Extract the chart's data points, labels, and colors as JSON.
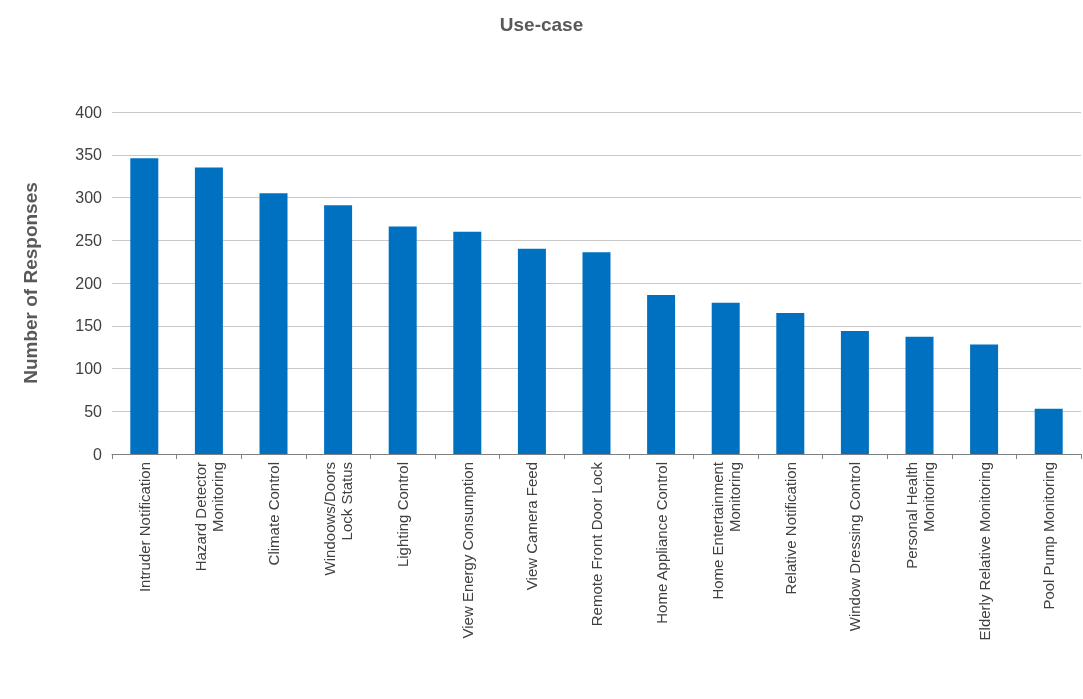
{
  "chart_data": {
    "type": "bar",
    "title": "Use-case",
    "ylabel": "Number of Responses",
    "categories": [
      "Intruder Notification",
      "Hazard Detector\nMonitoring",
      "Climate Control",
      "Windoows/Doors\nLock Status",
      "Lighting Control",
      "View Energy Consumption",
      "View Camera Feed",
      "Remote Front Door Lock",
      "Home Appliance Control",
      "Home Entertainment\nMonitoring",
      "Relative Notification",
      "Window Dressing Control",
      "Personal Health\nMonitoring",
      "Elderly Relative Monitoring",
      "Pool Pump Monitoring"
    ],
    "values": [
      346,
      335,
      305,
      291,
      266,
      260,
      240,
      236,
      186,
      177,
      165,
      144,
      137,
      128,
      53
    ],
    "color": "#0070c0",
    "ylim": [
      0,
      400
    ],
    "yticks": [
      0,
      50,
      100,
      150,
      200,
      250,
      300,
      350,
      400
    ],
    "grid": "y"
  }
}
